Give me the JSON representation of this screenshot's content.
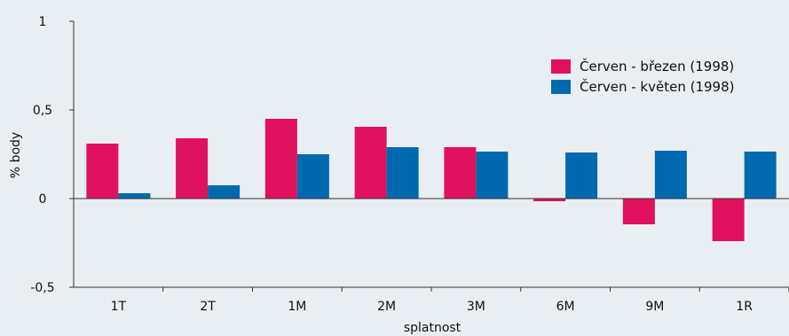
{
  "chart_data": {
    "type": "bar",
    "title": "",
    "xlabel": "splatnost",
    "ylabel": "% body",
    "ylim": [
      -0.5,
      1
    ],
    "yticks": [
      "1",
      "0,5",
      "0",
      "-0,5"
    ],
    "categories": [
      "1T",
      "2T",
      "1M",
      "2M",
      "3M",
      "6M",
      "9M",
      "1R"
    ],
    "series": [
      {
        "name": "Červen - březen (1998)",
        "color": "#e0115f",
        "values": [
          0.31,
          0.34,
          0.45,
          0.405,
          0.29,
          -0.015,
          -0.145,
          -0.24
        ]
      },
      {
        "name": "Červen - květen (1998)",
        "color": "#0069b0",
        "values": [
          0.03,
          0.075,
          0.25,
          0.29,
          0.265,
          0.26,
          0.27,
          0.265
        ]
      }
    ],
    "grid": false,
    "legend_position": "top-right"
  }
}
